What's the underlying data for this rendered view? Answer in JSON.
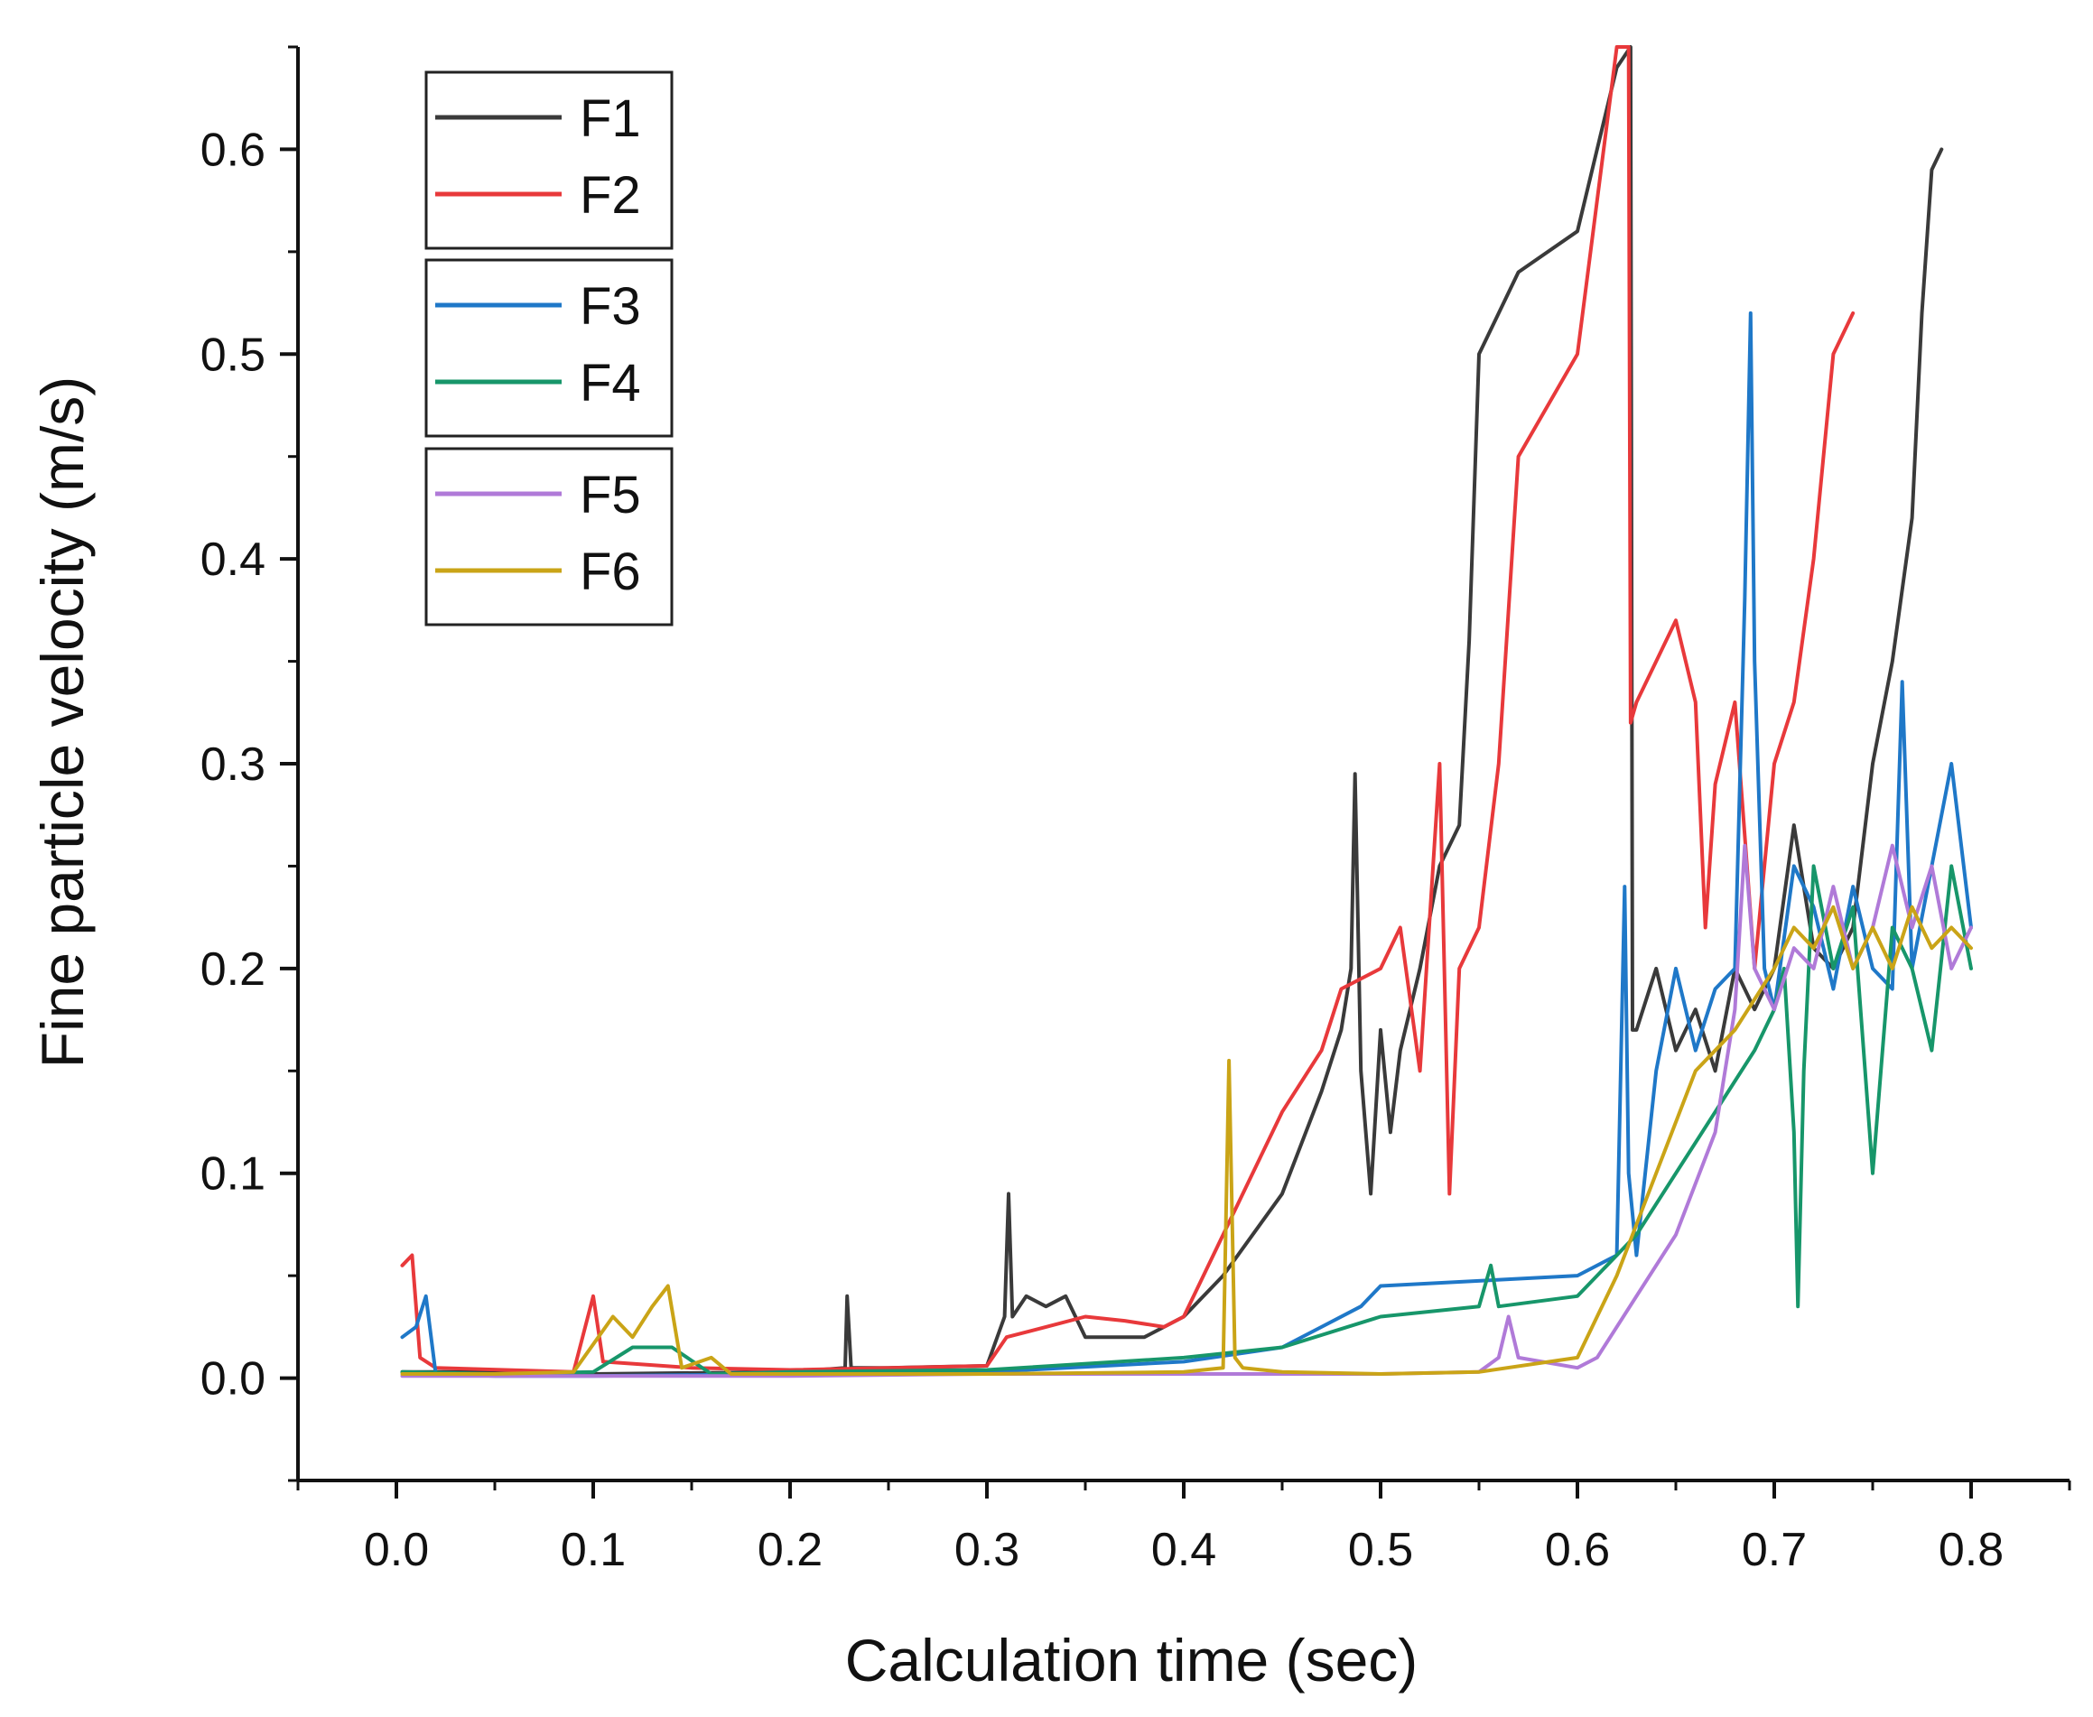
{
  "chart_data": {
    "type": "line",
    "title": "",
    "xlabel": "Calculation time (sec)",
    "ylabel": "Fine particle velocity (m/s)",
    "xlim": [
      -0.05,
      0.85
    ],
    "ylim": [
      -0.05,
      0.65
    ],
    "xticks": [
      0.0,
      0.1,
      0.2,
      0.3,
      0.4,
      0.5,
      0.6,
      0.7,
      0.8
    ],
    "yticks": [
      0.0,
      0.1,
      0.2,
      0.3,
      0.4,
      0.5,
      0.6
    ],
    "xtick_labels": [
      "0.0",
      "0.1",
      "0.2",
      "0.3",
      "0.4",
      "0.5",
      "0.6",
      "0.7",
      "0.8"
    ],
    "ytick_labels": [
      "0.0",
      "0.1",
      "0.2",
      "0.3",
      "0.4",
      "0.5",
      "0.6"
    ],
    "grid": false,
    "legend_position": "top-left",
    "legend_groups": [
      [
        "F1",
        "F2"
      ],
      [
        "F3",
        "F4"
      ],
      [
        "F5",
        "F6"
      ]
    ],
    "series": [
      {
        "name": "F1",
        "color": "#3a3a3a",
        "x": [
          0.003,
          0.05,
          0.1,
          0.2,
          0.228,
          0.229,
          0.231,
          0.25,
          0.3,
          0.309,
          0.311,
          0.313,
          0.32,
          0.33,
          0.34,
          0.35,
          0.38,
          0.4,
          0.42,
          0.45,
          0.47,
          0.48,
          0.485,
          0.487,
          0.49,
          0.495,
          0.5,
          0.505,
          0.51,
          0.52,
          0.53,
          0.54,
          0.545,
          0.55,
          0.57,
          0.6,
          0.62,
          0.627,
          0.628,
          0.63,
          0.64,
          0.65,
          0.66,
          0.67,
          0.68,
          0.69,
          0.7,
          0.71,
          0.72,
          0.73,
          0.74,
          0.75,
          0.76,
          0.77,
          0.775,
          0.78,
          0.785
        ],
        "y": [
          0.003,
          0.003,
          0.002,
          0.003,
          0.005,
          0.04,
          0.005,
          0.005,
          0.006,
          0.03,
          0.09,
          0.03,
          0.04,
          0.035,
          0.04,
          0.02,
          0.02,
          0.03,
          0.05,
          0.09,
          0.14,
          0.17,
          0.2,
          0.295,
          0.15,
          0.09,
          0.17,
          0.12,
          0.16,
          0.2,
          0.25,
          0.27,
          0.36,
          0.5,
          0.54,
          0.56,
          0.64,
          0.65,
          0.17,
          0.17,
          0.2,
          0.16,
          0.18,
          0.15,
          0.2,
          0.18,
          0.2,
          0.27,
          0.21,
          0.2,
          0.22,
          0.3,
          0.35,
          0.42,
          0.52,
          0.59,
          0.6
        ]
      },
      {
        "name": "F2",
        "color": "#e8393b",
        "x": [
          0.003,
          0.008,
          0.012,
          0.02,
          0.09,
          0.1,
          0.105,
          0.15,
          0.2,
          0.3,
          0.31,
          0.33,
          0.35,
          0.37,
          0.39,
          0.4,
          0.42,
          0.45,
          0.47,
          0.48,
          0.5,
          0.51,
          0.52,
          0.53,
          0.535,
          0.54,
          0.55,
          0.56,
          0.57,
          0.6,
          0.62,
          0.626,
          0.627,
          0.63,
          0.64,
          0.65,
          0.66,
          0.665,
          0.67,
          0.68,
          0.69,
          0.7,
          0.71,
          0.72,
          0.73,
          0.74
        ],
        "y": [
          0.055,
          0.06,
          0.01,
          0.005,
          0.003,
          0.04,
          0.008,
          0.005,
          0.004,
          0.006,
          0.02,
          0.025,
          0.03,
          0.028,
          0.025,
          0.03,
          0.07,
          0.13,
          0.16,
          0.19,
          0.2,
          0.22,
          0.15,
          0.3,
          0.09,
          0.2,
          0.22,
          0.3,
          0.45,
          0.5,
          0.65,
          0.65,
          0.32,
          0.33,
          0.35,
          0.37,
          0.33,
          0.22,
          0.29,
          0.33,
          0.2,
          0.3,
          0.33,
          0.4,
          0.5,
          0.52
        ]
      },
      {
        "name": "F3",
        "color": "#1f78c8",
        "x": [
          0.003,
          0.01,
          0.015,
          0.02,
          0.05,
          0.1,
          0.2,
          0.3,
          0.4,
          0.45,
          0.47,
          0.49,
          0.5,
          0.6,
          0.62,
          0.624,
          0.626,
          0.63,
          0.64,
          0.65,
          0.66,
          0.67,
          0.68,
          0.685,
          0.688,
          0.69,
          0.695,
          0.7,
          0.71,
          0.72,
          0.73,
          0.74,
          0.75,
          0.76,
          0.765,
          0.77,
          0.78,
          0.79,
          0.8
        ],
        "y": [
          0.02,
          0.025,
          0.04,
          0.002,
          0.001,
          0.001,
          0.002,
          0.003,
          0.008,
          0.015,
          0.025,
          0.035,
          0.045,
          0.05,
          0.06,
          0.24,
          0.1,
          0.06,
          0.15,
          0.2,
          0.16,
          0.19,
          0.2,
          0.38,
          0.52,
          0.35,
          0.2,
          0.18,
          0.25,
          0.23,
          0.19,
          0.24,
          0.2,
          0.19,
          0.34,
          0.2,
          0.25,
          0.3,
          0.22
        ]
      },
      {
        "name": "F4",
        "color": "#17966a",
        "x": [
          0.003,
          0.05,
          0.1,
          0.12,
          0.14,
          0.16,
          0.2,
          0.3,
          0.4,
          0.45,
          0.5,
          0.55,
          0.556,
          0.56,
          0.6,
          0.62,
          0.63,
          0.65,
          0.67,
          0.69,
          0.7,
          0.705,
          0.71,
          0.712,
          0.715,
          0.72,
          0.73,
          0.74,
          0.75,
          0.76,
          0.77,
          0.78,
          0.79,
          0.8
        ],
        "y": [
          0.003,
          0.002,
          0.003,
          0.015,
          0.015,
          0.002,
          0.003,
          0.004,
          0.01,
          0.015,
          0.03,
          0.035,
          0.055,
          0.035,
          0.04,
          0.06,
          0.07,
          0.1,
          0.13,
          0.16,
          0.18,
          0.2,
          0.12,
          0.035,
          0.15,
          0.25,
          0.2,
          0.23,
          0.1,
          0.22,
          0.2,
          0.16,
          0.25,
          0.2
        ]
      },
      {
        "name": "F5",
        "color": "#b07ad8",
        "x": [
          0.003,
          0.1,
          0.2,
          0.3,
          0.4,
          0.5,
          0.55,
          0.56,
          0.565,
          0.57,
          0.6,
          0.61,
          0.63,
          0.65,
          0.67,
          0.68,
          0.685,
          0.69,
          0.7,
          0.71,
          0.72,
          0.73,
          0.74,
          0.75,
          0.76,
          0.77,
          0.78,
          0.79,
          0.8
        ],
        "y": [
          0.001,
          0.001,
          0.001,
          0.002,
          0.002,
          0.002,
          0.003,
          0.01,
          0.03,
          0.01,
          0.005,
          0.01,
          0.04,
          0.07,
          0.12,
          0.18,
          0.26,
          0.2,
          0.18,
          0.21,
          0.2,
          0.24,
          0.2,
          0.22,
          0.26,
          0.22,
          0.25,
          0.2,
          0.22
        ]
      },
      {
        "name": "F6",
        "color": "#caa417",
        "x": [
          0.003,
          0.05,
          0.09,
          0.11,
          0.12,
          0.13,
          0.138,
          0.145,
          0.16,
          0.17,
          0.2,
          0.3,
          0.4,
          0.42,
          0.423,
          0.426,
          0.43,
          0.45,
          0.5,
          0.55,
          0.6,
          0.62,
          0.64,
          0.66,
          0.68,
          0.7,
          0.71,
          0.72,
          0.73,
          0.74,
          0.75,
          0.76,
          0.77,
          0.78,
          0.79,
          0.8
        ],
        "y": [
          0.002,
          0.002,
          0.003,
          0.03,
          0.02,
          0.035,
          0.045,
          0.005,
          0.01,
          0.002,
          0.002,
          0.002,
          0.003,
          0.005,
          0.155,
          0.01,
          0.005,
          0.003,
          0.002,
          0.003,
          0.01,
          0.05,
          0.1,
          0.15,
          0.17,
          0.2,
          0.22,
          0.21,
          0.23,
          0.2,
          0.22,
          0.2,
          0.23,
          0.21,
          0.22,
          0.21
        ]
      }
    ]
  }
}
